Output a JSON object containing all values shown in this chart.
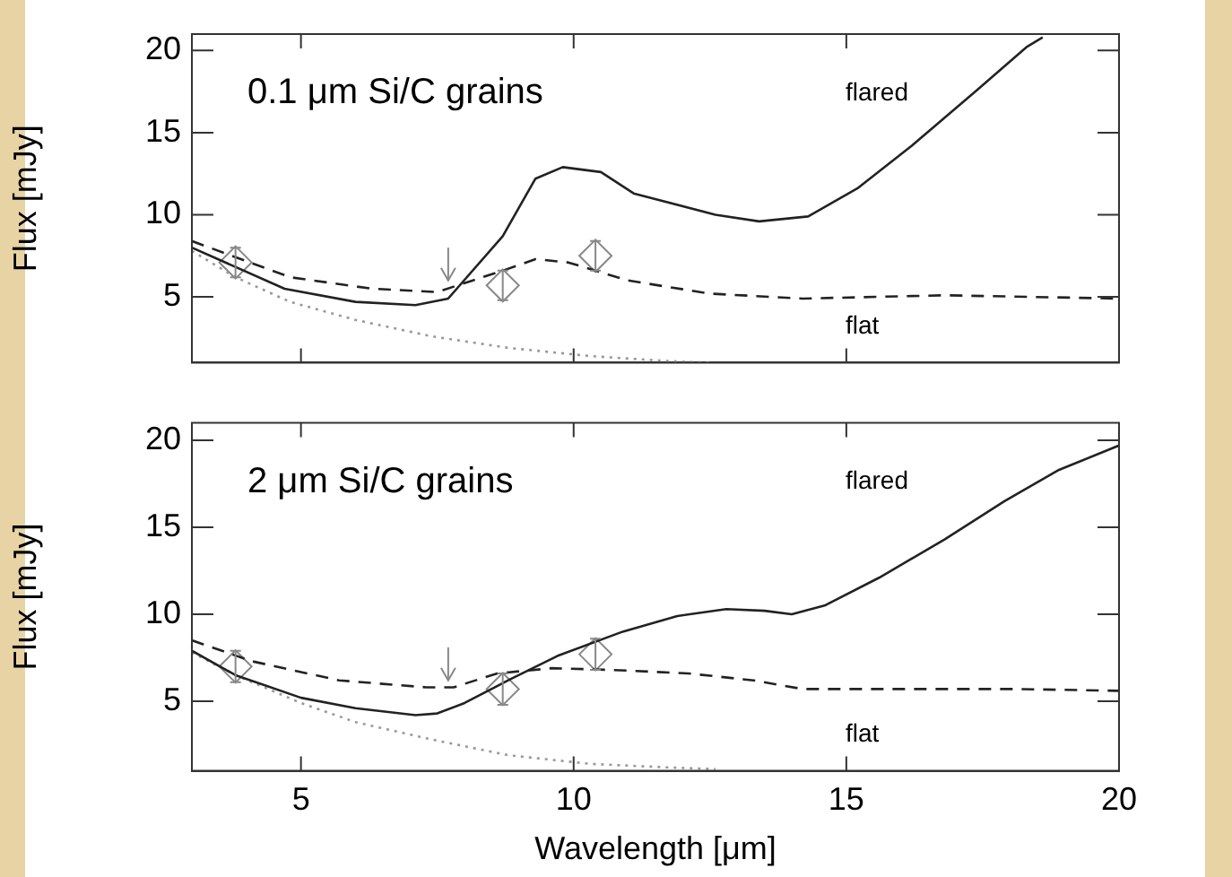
{
  "chart_data": [
    {
      "type": "line",
      "title": "0.1 μm Si/C grains",
      "ylabel": "Flux [mJy]",
      "xlim": [
        3,
        20
      ],
      "xticks": [
        5,
        10,
        15,
        20
      ],
      "ylim": [
        1,
        21
      ],
      "yticks": [
        5,
        10,
        15,
        20
      ],
      "tick_labels": "y",
      "grid": false,
      "legend": false,
      "series": [
        {
          "type": "line",
          "color": "#222222",
          "line_style": "solid",
          "marker": "none",
          "x": [
            3,
            4.7,
            6.0,
            7.1,
            7.7,
            8.7,
            9.3,
            9.8,
            10.5,
            11.1,
            12.6,
            13.4,
            14.3,
            15.2,
            16.2,
            17.4,
            18.3,
            18.6
          ],
          "values": [
            8.0,
            5.5,
            4.7,
            4.5,
            4.9,
            8.7,
            12.2,
            12.9,
            12.6,
            11.3,
            10.0,
            9.6,
            9.9,
            11.6,
            14.2,
            17.6,
            20.2,
            20.8
          ]
        },
        {
          "type": "line",
          "color": "#222222",
          "line_style": "dashed",
          "marker": "none",
          "x": [
            3,
            4.8,
            6.3,
            7.5,
            8.7,
            9.3,
            9.9,
            11.0,
            12.5,
            14.2,
            16.8,
            20
          ],
          "values": [
            8.4,
            6.2,
            5.5,
            5.3,
            6.6,
            7.3,
            7.1,
            6.0,
            5.2,
            4.9,
            5.1,
            4.9
          ]
        },
        {
          "type": "line",
          "color": "#999999",
          "line_style": "dotted",
          "marker": "none",
          "x": [
            3,
            3.8,
            4.8,
            6.0,
            7.4,
            8.8,
            10.3,
            11.7,
            12.5
          ],
          "values": [
            7.8,
            6.2,
            4.7,
            3.6,
            2.6,
            1.9,
            1.4,
            1.1,
            1.0
          ]
        },
        {
          "type": "scatter",
          "color": "#888888",
          "marker": "diamond",
          "x": [
            3.8,
            8.7,
            10.4
          ],
          "values": [
            7.1,
            5.7,
            7.5
          ],
          "errors": [
            0.9,
            0.9,
            0.9
          ]
        },
        {
          "type": "scatter",
          "color": "#888888",
          "x": [
            7.7
          ],
          "values": [
            6.4
          ],
          "errors": [
            [
              6.0,
              8.0
            ]
          ]
        }
      ],
      "annotations": [
        "flared",
        "flat"
      ]
    },
    {
      "type": "line",
      "title": "2 μm Si/C grains",
      "xlabel": "Wavelength [μm]",
      "ylabel": "Flux [mJy]",
      "xlim": [
        3,
        20
      ],
      "xticks": [
        5,
        10,
        15,
        20
      ],
      "ylim": [
        1,
        21
      ],
      "yticks": [
        5,
        10,
        15,
        20
      ],
      "grid": false,
      "legend": false,
      "series": [
        {
          "type": "line",
          "color": "#222222",
          "line_style": "solid",
          "marker": "none",
          "x": [
            3,
            3.8,
            5.0,
            6.0,
            7.1,
            7.5,
            8.0,
            8.8,
            9.7,
            10.9,
            11.9,
            12.8,
            13.5,
            14.0,
            14.6,
            15.6,
            16.8,
            17.9,
            18.9,
            20
          ],
          "values": [
            7.9,
            6.5,
            5.2,
            4.6,
            4.2,
            4.3,
            4.9,
            6.2,
            7.6,
            9.0,
            9.9,
            10.3,
            10.2,
            10.0,
            10.5,
            12.1,
            14.3,
            16.5,
            18.3,
            19.7
          ]
        },
        {
          "type": "line",
          "color": "#222222",
          "line_style": "dashed",
          "marker": "none",
          "x": [
            3,
            4.1,
            5.7,
            7.3,
            7.8,
            8.6,
            9.6,
            10.7,
            12.1,
            13.3,
            14.2,
            16.0,
            18.2,
            20
          ],
          "values": [
            8.5,
            7.3,
            6.2,
            5.8,
            5.8,
            6.6,
            6.9,
            6.8,
            6.6,
            6.2,
            5.7,
            5.7,
            5.7,
            5.6
          ]
        },
        {
          "type": "line",
          "color": "#999999",
          "line_style": "dotted",
          "marker": "none",
          "x": [
            3,
            3.8,
            5.0,
            6.0,
            7.4,
            8.8,
            10.3,
            11.7,
            12.6
          ],
          "values": [
            7.8,
            6.5,
            4.9,
            3.8,
            2.8,
            1.9,
            1.4,
            1.2,
            1.1
          ]
        },
        {
          "type": "scatter",
          "color": "#888888",
          "marker": "diamond",
          "x": [
            3.8,
            8.7,
            10.4
          ],
          "values": [
            7.0,
            5.7,
            7.7
          ],
          "errors": [
            0.9,
            0.9,
            0.9
          ]
        },
        {
          "type": "scatter",
          "color": "#888888",
          "x": [
            7.7
          ],
          "values": [
            6.5
          ],
          "errors": [
            [
              6.2,
              8.1
            ]
          ]
        }
      ],
      "annotations": [
        "flared",
        "flat"
      ]
    }
  ]
}
